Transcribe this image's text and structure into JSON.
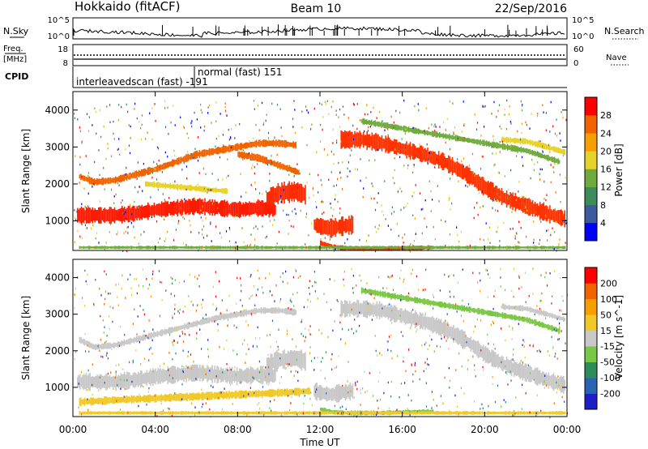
{
  "header": {
    "station": "Hokkaido (fitACF)",
    "beam": "Beam 10",
    "date": "22/Sep/2016"
  },
  "strips": {
    "nsky_label": "N.Sky",
    "nsearch_label": "N.Search",
    "noise_ticks": [
      "10^5",
      "10^0"
    ],
    "freq_label_1": "Freq.",
    "freq_label_2": "[MHz]",
    "freq_ticks": [
      "18",
      "8"
    ],
    "nave_label": "Nave",
    "nave_ticks": [
      "60",
      "0"
    ],
    "cpid_label": "CPID",
    "cpid_entries": [
      {
        "text": "interleavedscan (fast)  -191"
      },
      {
        "text": "normal (fast) 151"
      }
    ]
  },
  "chart_data": [
    {
      "type": "heatmap",
      "panel": "power",
      "ylabel": "Slant Range [km]",
      "xlabel": "Time UT",
      "yticks": [
        1000,
        2000,
        3000,
        4000
      ],
      "ylim": [
        200,
        4500
      ],
      "xlim": [
        0,
        24
      ],
      "xtick_labels": [
        "00:00",
        "04:00",
        "08:00",
        "12:00",
        "16:00",
        "20:00",
        "00:00"
      ],
      "colorbar": {
        "label": "Power [dB]",
        "ticks": [
          "4",
          "8",
          "12",
          "16",
          "20",
          "24",
          "28"
        ],
        "colors": [
          "#0000ff",
          "#3c5aa0",
          "#3c8c5a",
          "#6eaa3c",
          "#e6d228",
          "#f5a000",
          "#f06400",
          "#ff0000"
        ]
      },
      "bands": [
        {
          "t": [
            0.2,
            1,
            2,
            3,
            4,
            5,
            6,
            7,
            8,
            9,
            9.8
          ],
          "r": [
            1150,
            1150,
            1150,
            1200,
            1300,
            1350,
            1400,
            1350,
            1300,
            1350,
            1300
          ],
          "w": 400,
          "color": "#ff1a00"
        },
        {
          "t": [
            9.4,
            10,
            10.8,
            11.3
          ],
          "r": [
            1600,
            1750,
            1800,
            1700
          ],
          "w": 500,
          "color": "#ff2a00"
        },
        {
          "t": [
            11.7,
            12,
            12.5,
            13,
            13.6
          ],
          "r": [
            900,
            850,
            800,
            850,
            900
          ],
          "w": 450,
          "color": "#ff3000"
        },
        {
          "t": [
            12,
            12.6,
            13.2,
            14,
            15,
            16,
            17.5
          ],
          "r": [
            400,
            300,
            260,
            250,
            250,
            260,
            280
          ],
          "w": 120,
          "color": "#ff3000"
        },
        {
          "t": [
            13,
            14,
            15,
            16,
            17,
            18,
            19,
            20,
            21,
            22,
            23,
            23.9
          ],
          "r": [
            3200,
            3200,
            3100,
            2950,
            2800,
            2600,
            2300,
            1900,
            1600,
            1400,
            1200,
            1050
          ],
          "w": 420,
          "color": "#ff3200"
        },
        {
          "t": [
            0.3,
            1,
            2,
            3,
            4,
            5,
            6,
            7,
            8,
            9,
            10,
            10.8
          ],
          "r": [
            2200,
            2050,
            2100,
            2250,
            2400,
            2600,
            2800,
            2900,
            3000,
            3100,
            3100,
            3050
          ],
          "w": 180,
          "color": "#f06400"
        },
        {
          "t": [
            8,
            9,
            10,
            11
          ],
          "r": [
            2800,
            2700,
            2500,
            2300
          ],
          "w": 180,
          "color": "#f06400"
        },
        {
          "t": [
            3.5,
            4.5,
            5.5,
            6.5,
            7.5
          ],
          "r": [
            2000,
            1950,
            1900,
            1850,
            1800
          ],
          "w": 150,
          "color": "#e6d228"
        },
        {
          "t": [
            0.3,
            1,
            2,
            3,
            4,
            5,
            6,
            7,
            8,
            9,
            10,
            11,
            12,
            13,
            14,
            15,
            16,
            17,
            18,
            19,
            20,
            21,
            22,
            23,
            23.9
          ],
          "r": [
            280,
            280,
            280,
            280,
            280,
            280,
            280,
            280,
            280,
            280,
            280,
            280,
            280,
            280,
            280,
            280,
            280,
            280,
            280,
            280,
            280,
            280,
            280,
            280,
            280
          ],
          "w": 80,
          "color": "#6eaa3c"
        },
        {
          "t": [
            14,
            16,
            18,
            20,
            22,
            23.6
          ],
          "r": [
            3700,
            3500,
            3300,
            3100,
            2900,
            2600
          ],
          "w": 150,
          "color": "#6eaa3c"
        },
        {
          "t": [
            20.8,
            22,
            23,
            23.9
          ],
          "r": [
            3200,
            3150,
            3000,
            2850
          ],
          "w": 150,
          "color": "#e6d228"
        }
      ]
    },
    {
      "type": "heatmap",
      "panel": "velocity",
      "ylabel": "Slant Range [km]",
      "xlabel": "Time UT",
      "yticks": [
        1000,
        2000,
        3000,
        4000
      ],
      "ylim": [
        200,
        4500
      ],
      "xlim": [
        0,
        24
      ],
      "xtick_labels": [
        "00:00",
        "04:00",
        "08:00",
        "12:00",
        "16:00",
        "20:00",
        "00:00"
      ],
      "colorbar": {
        "label": "Velocity [m s^-1]",
        "ticks": [
          "200",
          "100",
          "50",
          "15",
          "-15",
          "-50",
          "-100",
          "-200"
        ],
        "colors": [
          "#1e1ec8",
          "#2864b4",
          "#2d8c5a",
          "#78c846",
          "#c8c8c8",
          "#f0c828",
          "#f5a000",
          "#f06400",
          "#ff0000"
        ]
      },
      "bands": [
        {
          "t": [
            0.2,
            1,
            2,
            3,
            4,
            5,
            6,
            7,
            8,
            9,
            9.8
          ],
          "r": [
            1150,
            1150,
            1150,
            1200,
            1300,
            1350,
            1400,
            1350,
            1300,
            1350,
            1300
          ],
          "w": 420,
          "color": "#c8c8c8"
        },
        {
          "t": [
            9.4,
            10,
            10.8,
            11.3
          ],
          "r": [
            1600,
            1750,
            1800,
            1700
          ],
          "w": 500,
          "color": "#c8c8c8"
        },
        {
          "t": [
            11.7,
            12,
            12.5,
            13,
            13.6
          ],
          "r": [
            900,
            850,
            800,
            850,
            900
          ],
          "w": 450,
          "color": "#c8c8c8"
        },
        {
          "t": [
            12,
            12.6,
            13.2,
            14,
            15,
            16,
            17.5
          ],
          "r": [
            400,
            320,
            300,
            300,
            300,
            320,
            340
          ],
          "w": 120,
          "color": "#78c846"
        },
        {
          "t": [
            13,
            14,
            15,
            16,
            17,
            18,
            19,
            20,
            21,
            22,
            23,
            23.9
          ],
          "r": [
            3150,
            3150,
            3100,
            2950,
            2800,
            2600,
            2300,
            1900,
            1600,
            1400,
            1200,
            1050
          ],
          "w": 420,
          "color": "#c8c8c8"
        },
        {
          "t": [
            0.3,
            1,
            2,
            3,
            4,
            5,
            6,
            7,
            8,
            9,
            10,
            10.8
          ],
          "r": [
            2300,
            2100,
            2150,
            2300,
            2450,
            2600,
            2750,
            2900,
            3000,
            3100,
            3100,
            3050
          ],
          "w": 160,
          "color": "#c8c8c8"
        },
        {
          "t": [
            0.3,
            2,
            4,
            6,
            8,
            10,
            11.5
          ],
          "r": [
            600,
            650,
            700,
            750,
            800,
            850,
            900
          ],
          "w": 200,
          "color": "#f0c828"
        },
        {
          "t": [
            0.3,
            2,
            4,
            6,
            8,
            10,
            12,
            14,
            16,
            18,
            20,
            22,
            23.9
          ],
          "r": [
            300,
            300,
            300,
            300,
            300,
            300,
            300,
            300,
            300,
            300,
            300,
            300,
            300
          ],
          "w": 90,
          "color": "#f0c828"
        },
        {
          "t": [
            14,
            16,
            18,
            20,
            22,
            23.6
          ],
          "r": [
            3650,
            3450,
            3250,
            3050,
            2850,
            2550
          ],
          "w": 150,
          "color": "#78c846"
        },
        {
          "t": [
            20.8,
            22,
            23,
            23.9
          ],
          "r": [
            3200,
            3150,
            3000,
            2850
          ],
          "w": 140,
          "color": "#c8c8c8"
        }
      ]
    }
  ]
}
